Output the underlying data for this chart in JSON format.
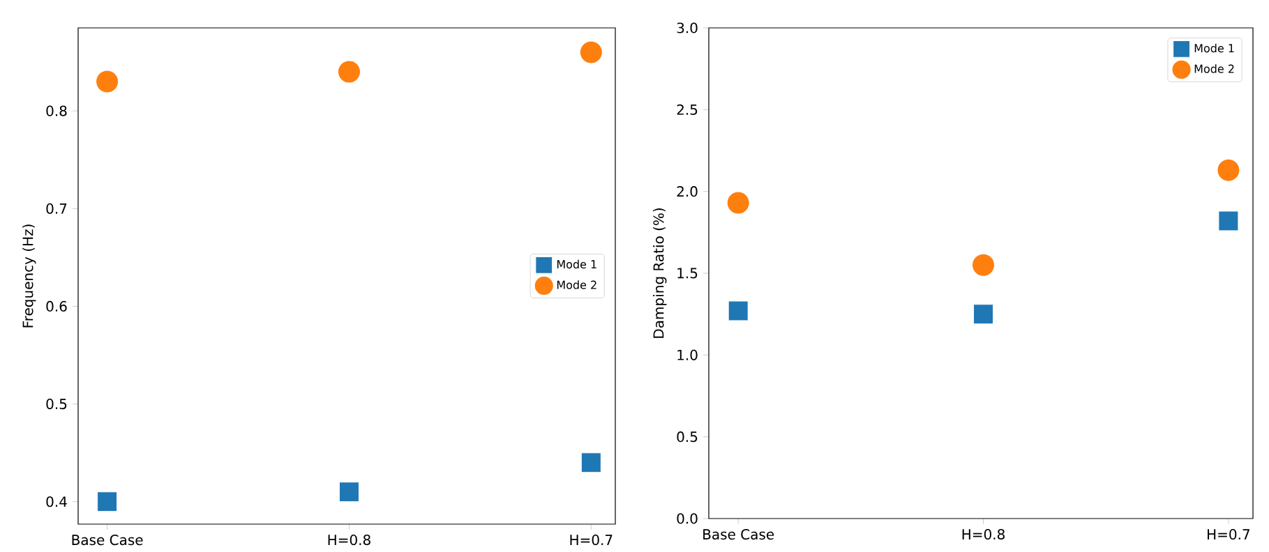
{
  "chart_data": [
    {
      "type": "scatter",
      "categories": [
        "Base Case",
        "H=0.8",
        "H=0.7"
      ],
      "ylabel": "Frequency (Hz)",
      "ylim": [
        0.377,
        0.885
      ],
      "yticks": [
        0.4,
        0.5,
        0.6,
        0.7,
        0.8
      ],
      "grid": false,
      "legend": "right",
      "series": [
        {
          "name": "Mode 1",
          "color": "#1f77b4",
          "marker": "square",
          "values": [
            0.4,
            0.41,
            0.44
          ]
        },
        {
          "name": "Mode 2",
          "color": "#ff7f0e",
          "marker": "circle",
          "values": [
            0.83,
            0.84,
            0.86
          ]
        }
      ]
    },
    {
      "type": "scatter",
      "categories": [
        "Base Case",
        "H=0.8",
        "H=0.7"
      ],
      "ylabel": "Damping Ratio (%)",
      "ylim": [
        0,
        3
      ],
      "yticks": [
        {
          "value": 0,
          "label": "0.0"
        },
        {
          "value": 0.5,
          "label": "0.5"
        },
        {
          "value": 1,
          "label": "1.0"
        },
        {
          "value": 1.5,
          "label": "1.5"
        },
        {
          "value": 2,
          "label": "2.0"
        },
        {
          "value": 2.5,
          "label": "2.5"
        },
        {
          "value": 3,
          "label": "3.0"
        }
      ],
      "grid": false,
      "legend": "top right",
      "series": [
        {
          "name": "Mode 1",
          "color": "#1f77b4",
          "marker": "square",
          "values": [
            1.27,
            1.25,
            1.82
          ]
        },
        {
          "name": "Mode 2",
          "color": "#ff7f0e",
          "marker": "circle",
          "values": [
            1.93,
            1.55,
            2.13
          ]
        }
      ]
    }
  ]
}
